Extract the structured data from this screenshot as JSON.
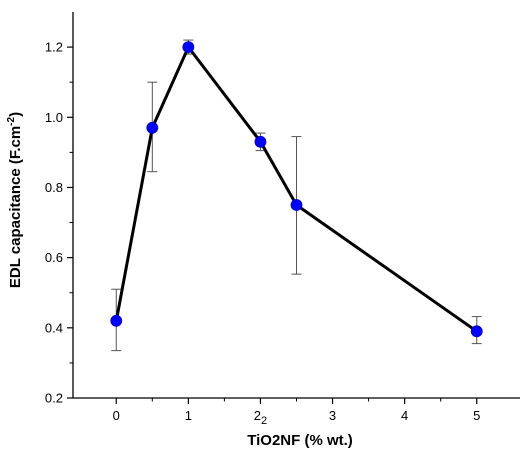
{
  "chart_data": {
    "type": "line",
    "title": "",
    "xlabel": "TiO2NF (% wt.)",
    "ylabel": {
      "main": "EDL capacitance (F.cm",
      "superscript": "-2",
      "close": ")"
    },
    "xlim": [
      -0.6,
      5.6
    ],
    "ylim": [
      0.2,
      1.3
    ],
    "x_ticks": [
      0,
      1,
      2,
      3,
      4,
      5
    ],
    "x_tick_labels": [
      "0",
      "1",
      "2",
      "3",
      "4",
      "5"
    ],
    "x_tick_extra": {
      "x": 2,
      "subscript": "2"
    },
    "y_ticks": [
      0.2,
      0.4,
      0.6,
      0.8,
      1.0,
      1.2
    ],
    "y_tick_labels": [
      "0.2",
      "0.4",
      "0.6",
      "0.8",
      "1.0",
      "1.2"
    ],
    "grid": false,
    "legend": "none",
    "series": [
      {
        "color": "#0000ff",
        "line_color": "#000000",
        "points": [
          {
            "x": 0,
            "y": 0.42,
            "err_low": 0.335,
            "err_high": 0.51
          },
          {
            "x": 0.5,
            "y": 0.97,
            "err_low": 0.845,
            "err_high": 1.1
          },
          {
            "x": 1,
            "y": 1.2,
            "err_low": 1.18,
            "err_high": 1.22
          },
          {
            "x": 2,
            "y": 0.93,
            "err_low": 0.905,
            "err_high": 0.955
          },
          {
            "x": 2.5,
            "y": 0.75,
            "err_low": 0.553,
            "err_high": 0.945
          },
          {
            "x": 5,
            "y": 0.39,
            "err_low": 0.355,
            "err_high": 0.432
          }
        ]
      }
    ]
  }
}
